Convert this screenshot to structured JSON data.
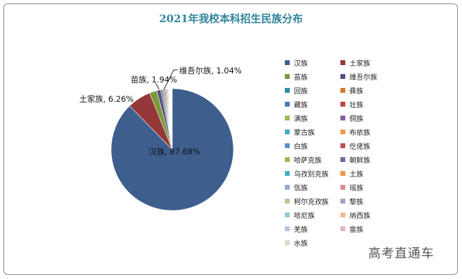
{
  "chart_data": {
    "type": "pie",
    "title": "2021年我校本科招生民族分布",
    "labels": [
      "汉族",
      "土家族",
      "苗族",
      "维吾尔族",
      "回族",
      "彝族",
      "藏族",
      "壮族",
      "满族",
      "侗族",
      "蒙古族",
      "布依族",
      "白族",
      "仡佬族",
      "哈萨克族",
      "朝鲜族",
      "乌孜别克族",
      "土族",
      "佤族",
      "瑶族",
      "柯尔克孜族",
      "黎族",
      "哈尼族",
      "纳西族",
      "羌族",
      "畲族",
      "水族"
    ],
    "values": [
      87.68,
      6.26,
      1.94,
      1.04,
      0.45,
      0.35,
      0.3,
      0.25,
      0.22,
      0.2,
      0.18,
      0.15,
      0.13,
      0.12,
      0.1,
      0.09,
      0.08,
      0.07,
      0.06,
      0.06,
      0.05,
      0.05,
      0.04,
      0.04,
      0.04,
      0.03,
      0.02
    ],
    "colors": [
      "#3E5E8E",
      "#94383A",
      "#7A9A3A",
      "#5E4A82",
      "#2E8BA0",
      "#D47A2A",
      "#4A78B8",
      "#B94A48",
      "#98B954",
      "#7D60A0",
      "#4BACC6",
      "#F79646",
      "#5B8FD0",
      "#C0504D",
      "#9BBB59",
      "#8064A2",
      "#4BACC6",
      "#F79646",
      "#95A8D0",
      "#D09090",
      "#B8C89A",
      "#A89CC0",
      "#92C8D4",
      "#F8B890",
      "#B8C4E0",
      "#E0B8C0",
      "#D6DEC8"
    ],
    "data_labels": {
      "han": "汉族, 87.68%",
      "tujia": "土家族, 6.26%",
      "miao": "苗族, 1.94%",
      "uyghur": "维吾尔族, 1.04%"
    },
    "legend_position": "right",
    "start_angle": "top",
    "direction": "clockwise"
  },
  "watermark": "高考直通车"
}
